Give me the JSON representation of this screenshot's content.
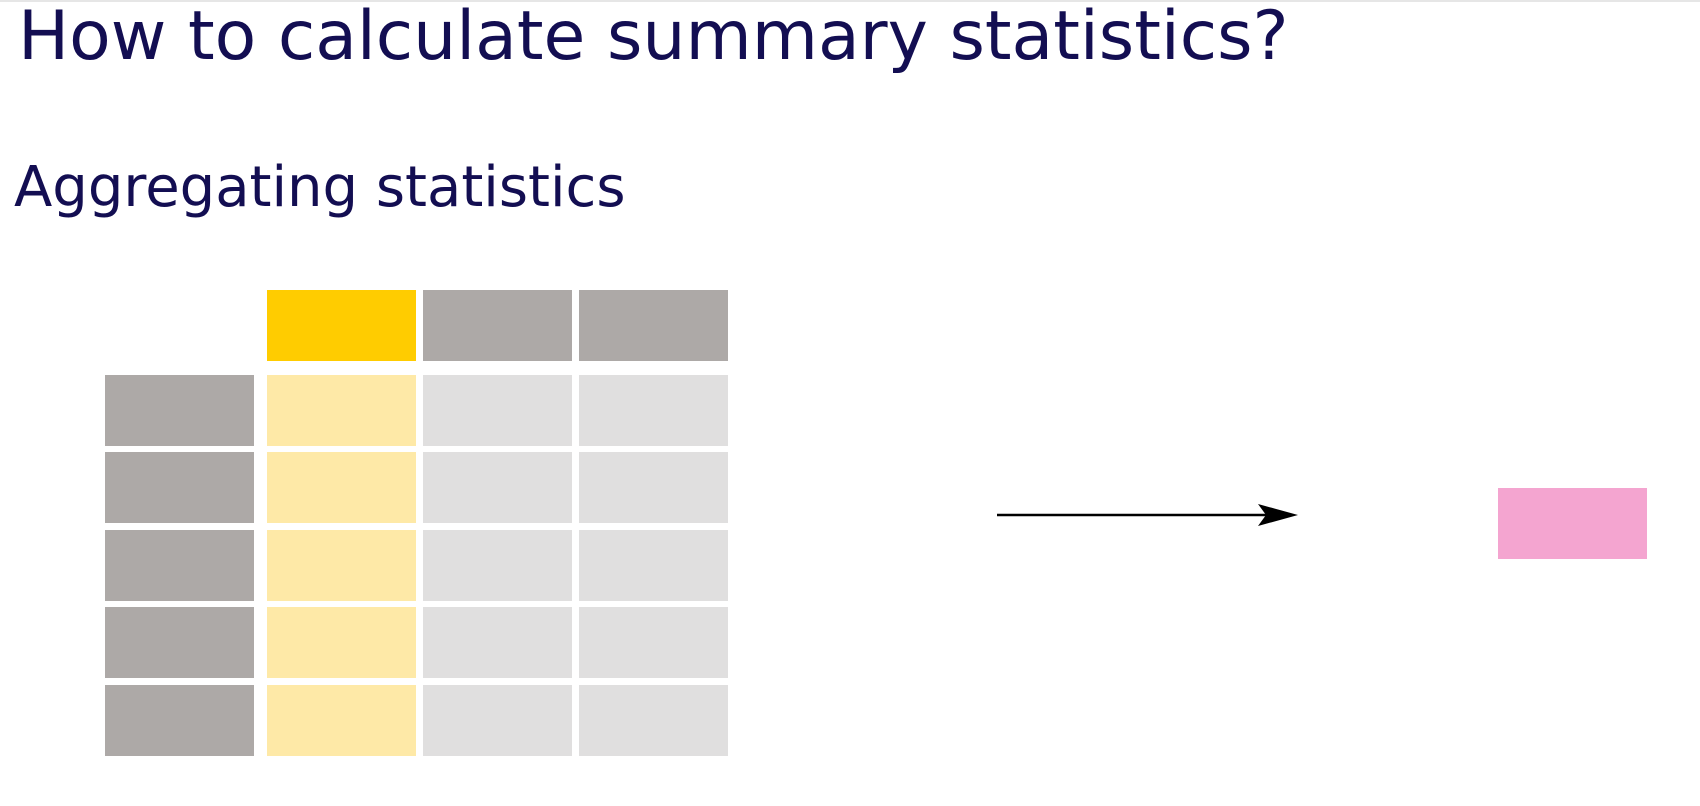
{
  "slide": {
    "title": "How to calculate summary statistics?",
    "subtitle": "Aggregating statistics"
  },
  "colors": {
    "text": "#130e52",
    "header_cell": "#ada9a7",
    "body_cell": "#e0dfdf",
    "index_cell": "#ada9a7",
    "selected_header": "#ffcc00",
    "selected_column": "#fee9a7",
    "result": "#f4a5d0",
    "arrow": "#000000"
  },
  "table": {
    "data_columns": 3,
    "body_rows": 5,
    "selected_column": 0
  }
}
